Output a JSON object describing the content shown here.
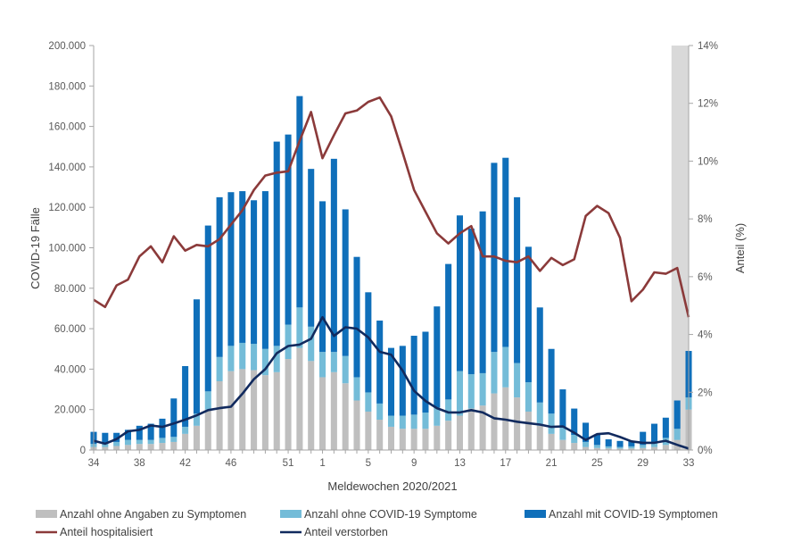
{
  "chart_data": {
    "type": "bar",
    "stacked": true,
    "categories": [
      "34",
      "35",
      "36",
      "37",
      "38",
      "39",
      "40",
      "41",
      "42",
      "43",
      "44",
      "45",
      "46",
      "47",
      "48",
      "49",
      "50",
      "51",
      "52",
      "53",
      "1",
      "2",
      "3",
      "4",
      "5",
      "6",
      "7",
      "8",
      "9",
      "10",
      "11",
      "12",
      "13",
      "14",
      "15",
      "16",
      "17",
      "18",
      "19",
      "20",
      "21",
      "22",
      "23",
      "24",
      "25",
      "26",
      "27",
      "28",
      "29",
      "30",
      "31",
      "32",
      "33"
    ],
    "x_tick_labels": [
      "34",
      "38",
      "42",
      "46",
      "51",
      "1",
      "5",
      "9",
      "13",
      "17",
      "21",
      "25",
      "29",
      "33"
    ],
    "x_tick_indices": [
      0,
      4,
      8,
      12,
      17,
      20,
      24,
      28,
      32,
      36,
      40,
      44,
      48,
      52
    ],
    "xlabel": "Meldewochen 2020/2021",
    "ylabel": "COVID-19 Fälle",
    "y2label": "Anteil (%)",
    "ylim": [
      0,
      200000
    ],
    "y2lim": [
      0,
      14
    ],
    "y_tick_labels": [
      "0",
      "20.000",
      "40.000",
      "60.000",
      "80.000",
      "100.000",
      "120.000",
      "140.000",
      "160.000",
      "180.000",
      "200.000"
    ],
    "y_tick_values": [
      0,
      20000,
      40000,
      60000,
      80000,
      100000,
      120000,
      140000,
      160000,
      180000,
      200000
    ],
    "y2_tick_labels": [
      "0%",
      "2%",
      "4%",
      "6%",
      "8%",
      "10%",
      "12%",
      "14%"
    ],
    "y2_tick_values": [
      0,
      2,
      4,
      6,
      8,
      10,
      12,
      14
    ],
    "shaded_weeks": [
      "32",
      "33"
    ],
    "series": [
      {
        "name": "Anzahl ohne Angaben zu Symptomen",
        "kind": "bar",
        "color": "#bfbfbf",
        "values": [
          1500,
          1500,
          2000,
          2500,
          3000,
          3000,
          3500,
          4000,
          8000,
          12000,
          20000,
          34000,
          39000,
          40000,
          39500,
          37000,
          38500,
          45000,
          50500,
          44000,
          36000,
          38500,
          33000,
          24500,
          19000,
          15000,
          11500,
          10500,
          10500,
          10500,
          12000,
          14500,
          17000,
          20500,
          22000,
          28000,
          31000,
          26000,
          19000,
          12000,
          8000,
          5000,
          3500,
          1500,
          1000,
          800,
          700,
          800,
          1000,
          1500,
          2500,
          5000,
          20000
        ]
      },
      {
        "name": "Anzahl ohne COVID-19 Symptome",
        "kind": "bar",
        "color": "#74bcd8",
        "values": [
          1500,
          1500,
          2000,
          2500,
          2000,
          2000,
          2500,
          2500,
          3500,
          6000,
          9000,
          12000,
          12500,
          13000,
          13000,
          13000,
          13000,
          17000,
          20000,
          17000,
          12500,
          10000,
          13500,
          11500,
          9500,
          8000,
          5500,
          6500,
          7000,
          8000,
          9000,
          10500,
          22000,
          17000,
          16000,
          20500,
          20000,
          17000,
          14500,
          11500,
          10000,
          6000,
          4000,
          2500,
          1500,
          1000,
          800,
          1000,
          1500,
          2500,
          3500,
          5500,
          6000
        ]
      },
      {
        "name": "Anzahl mit COVID-19 Symptomen",
        "kind": "bar",
        "color": "#0f6fba",
        "values": [
          6000,
          5500,
          4500,
          5000,
          7000,
          8000,
          9500,
          19000,
          30000,
          56500,
          82000,
          79000,
          76000,
          75000,
          71000,
          78000,
          101000,
          94000,
          104500,
          78000,
          74500,
          95500,
          72500,
          59500,
          49500,
          41000,
          33500,
          34500,
          39000,
          40000,
          50000,
          67000,
          77000,
          72000,
          80000,
          93500,
          93500,
          82000,
          67000,
          47000,
          32000,
          19000,
          13000,
          9500,
          5000,
          3500,
          3000,
          2500,
          6500,
          9000,
          10000,
          14000,
          23000
        ]
      },
      {
        "name": "Anteil hospitalisiert",
        "kind": "line",
        "axis": "y2",
        "color": "#8b3a3a",
        "values": [
          5.2,
          4.95,
          5.7,
          5.9,
          6.7,
          7.05,
          6.5,
          7.4,
          6.9,
          7.1,
          7.05,
          7.3,
          7.8,
          8.3,
          9.0,
          9.5,
          9.6,
          9.65,
          10.7,
          11.7,
          10.1,
          10.9,
          11.65,
          11.75,
          12.05,
          12.2,
          11.55,
          10.3,
          9.0,
          8.25,
          7.5,
          7.15,
          7.5,
          7.75,
          6.7,
          6.7,
          6.55,
          6.5,
          6.7,
          6.2,
          6.65,
          6.4,
          6.6,
          8.1,
          8.45,
          8.2,
          7.35,
          5.15,
          5.55,
          6.15,
          6.1,
          6.3,
          4.6
        ]
      },
      {
        "name": "Anteil verstorben",
        "kind": "line",
        "axis": "y2",
        "color": "#112a5e",
        "values": [
          0.32,
          0.22,
          0.38,
          0.65,
          0.7,
          0.85,
          0.8,
          0.92,
          1.05,
          1.2,
          1.38,
          1.45,
          1.5,
          1.95,
          2.45,
          2.8,
          3.35,
          3.6,
          3.65,
          3.85,
          4.6,
          3.95,
          4.25,
          4.2,
          3.9,
          3.4,
          3.3,
          2.75,
          2.05,
          1.7,
          1.45,
          1.3,
          1.3,
          1.38,
          1.3,
          1.1,
          1.05,
          0.98,
          0.93,
          0.88,
          0.8,
          0.82,
          0.6,
          0.35,
          0.55,
          0.58,
          0.45,
          0.3,
          0.25,
          0.25,
          0.32,
          0.18,
          0.05
        ]
      }
    ],
    "legend": [
      {
        "label": "Anzahl ohne Angaben zu Symptomen",
        "symbol": "box",
        "color": "#bfbfbf"
      },
      {
        "label": "Anzahl ohne COVID-19 Symptome",
        "symbol": "box",
        "color": "#74bcd8"
      },
      {
        "label": "Anzahl mit COVID-19 Symptomen",
        "symbol": "box",
        "color": "#0f6fba"
      },
      {
        "label": "Anteil hospitalisiert",
        "symbol": "line",
        "color": "#8b3a3a"
      },
      {
        "label": "Anteil verstorben",
        "symbol": "line",
        "color": "#112a5e"
      }
    ],
    "legend_position": "bottom",
    "grid": false
  }
}
